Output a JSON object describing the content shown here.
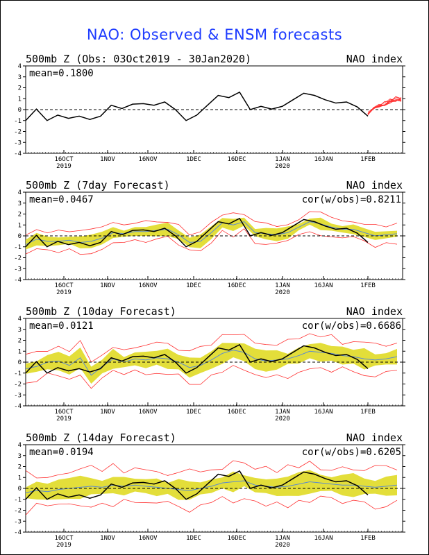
{
  "title": "NAO: Observed & ENSM forecasts",
  "colors": {
    "observed": "#000000",
    "ens_band": "#e3de3a",
    "ens_member": "#ff3030",
    "ens_mean": "#5a8ad2",
    "title": "#1e3cff"
  },
  "shared": {
    "ylim": [
      -4,
      4
    ],
    "yticks": [
      "-4",
      "-3",
      "-2",
      "-1",
      "0",
      "1",
      "2",
      "3",
      "4"
    ],
    "xticks": [
      {
        "label": "16OCT",
        "sub": "2019"
      },
      {
        "label": "1NOV",
        "sub": ""
      },
      {
        "label": "16NOV",
        "sub": ""
      },
      {
        "label": "1DEC",
        "sub": ""
      },
      {
        "label": "16DEC",
        "sub": ""
      },
      {
        "label": "1JAN",
        "sub": "2020"
      },
      {
        "label": "16JAN",
        "sub": ""
      },
      {
        "label": "1FEB",
        "sub": ""
      }
    ],
    "right_label": "NAO index"
  },
  "chart_data": [
    {
      "type": "line",
      "title": "500mb Z (Obs: 03Oct2019 - 30Jan2020)",
      "stat": "mean=0.1800",
      "cor": "",
      "x_start": "2019-10-03",
      "observed": [
        -1.0,
        0.05,
        -1.0,
        -0.5,
        -0.8,
        -0.6,
        -0.9,
        -0.6,
        0.4,
        0.1,
        0.5,
        0.55,
        0.4,
        0.7,
        0.0,
        -1.0,
        -0.5,
        0.4,
        1.3,
        1.1,
        1.6,
        0.0,
        0.3,
        0.05,
        0.3,
        0.9,
        1.5,
        1.3,
        0.9,
        0.6,
        0.7,
        0.25,
        -0.6
      ],
      "forecast_spread": [
        [
          -0.5,
          -0.2
        ],
        [
          0.0,
          0.2
        ],
        [
          0.2,
          0.5
        ],
        [
          0.3,
          0.8
        ],
        [
          0.5,
          1.0
        ],
        [
          0.6,
          1.2
        ],
        [
          0.7,
          1.4
        ]
      ]
    },
    {
      "type": "line",
      "title": "500mb Z (7day Forecast)",
      "stat": "mean=0.0467",
      "cor": "cor(w/obs)=0.8211",
      "observed": [
        -1.0,
        0.05,
        -1.0,
        -0.5,
        -0.8,
        -0.6,
        -0.9,
        -0.6,
        0.4,
        0.1,
        0.5,
        0.55,
        0.4,
        0.7,
        0.0,
        -1.0,
        -0.5,
        0.4,
        1.3,
        1.1,
        1.6,
        0.0,
        0.3,
        0.05,
        0.3,
        0.9,
        1.5,
        1.3,
        0.9,
        0.6,
        0.7,
        0.25,
        -0.6
      ],
      "ens_mean": [
        -0.8,
        -0.3,
        -0.5,
        -0.5,
        -0.4,
        -0.6,
        -0.5,
        -0.2,
        0.3,
        0.2,
        0.4,
        0.4,
        0.5,
        0.6,
        0.1,
        -0.6,
        -0.5,
        0.3,
        1.2,
        1.0,
        1.3,
        0.3,
        0.2,
        0.1,
        0.3,
        0.8,
        1.3,
        1.1,
        0.8,
        0.6,
        0.6,
        0.3,
        0.0,
        0.1,
        0.2
      ],
      "spread": 0.45,
      "outer": 0.9
    },
    {
      "type": "line",
      "title": "500mb Z (10day Forecast)",
      "stat": "mean=0.0121",
      "cor": "cor(w/obs)=0.6686",
      "observed": [
        -1.0,
        0.05,
        -1.0,
        -0.5,
        -0.8,
        -0.6,
        -0.9,
        -0.6,
        0.4,
        0.1,
        0.5,
        0.55,
        0.4,
        0.7,
        0.0,
        -1.0,
        -0.5,
        0.4,
        1.3,
        1.1,
        1.6,
        0.0,
        0.3,
        0.05,
        0.3,
        0.9,
        1.5,
        1.3,
        0.9,
        0.6,
        0.7,
        0.25,
        -0.6
      ],
      "ens_mean": [
        -0.6,
        -0.4,
        0.0,
        0.1,
        -0.3,
        0.4,
        -1.2,
        -0.4,
        0.3,
        0.0,
        0.3,
        0.2,
        0.4,
        0.3,
        0.0,
        -0.5,
        -0.3,
        0.2,
        0.8,
        1.1,
        0.9,
        0.3,
        0.1,
        0.2,
        0.3,
        0.6,
        1.0,
        0.9,
        0.8,
        0.6,
        0.5,
        0.3,
        0.2,
        0.3,
        0.5
      ],
      "spread": 0.7,
      "outer": 1.4
    },
    {
      "type": "line",
      "title": "500mb Z (14day Forecast)",
      "stat": "mean=0.0194",
      "cor": "cor(w/obs)=0.6205",
      "observed": [
        -1.0,
        0.05,
        -1.0,
        -0.5,
        -0.8,
        -0.6,
        -0.9,
        -0.6,
        0.4,
        0.1,
        0.5,
        0.55,
        0.4,
        0.7,
        0.0,
        -1.0,
        -0.5,
        0.4,
        1.3,
        1.1,
        1.6,
        0.0,
        0.3,
        0.05,
        0.3,
        0.9,
        1.5,
        1.3,
        0.9,
        0.6,
        0.7,
        0.25,
        -0.6
      ],
      "ens_mean": [
        -0.4,
        -0.2,
        -0.3,
        -0.1,
        0.0,
        0.1,
        0.2,
        0.1,
        0.3,
        0.2,
        0.3,
        0.2,
        0.1,
        0.0,
        -0.1,
        -0.2,
        0.0,
        0.2,
        0.5,
        0.6,
        0.7,
        0.3,
        0.2,
        0.1,
        0.2,
        0.4,
        0.6,
        0.5,
        0.4,
        0.3,
        0.3,
        0.2,
        0.1,
        0.2,
        0.3
      ],
      "spread": 0.8,
      "outer": 1.6
    }
  ]
}
